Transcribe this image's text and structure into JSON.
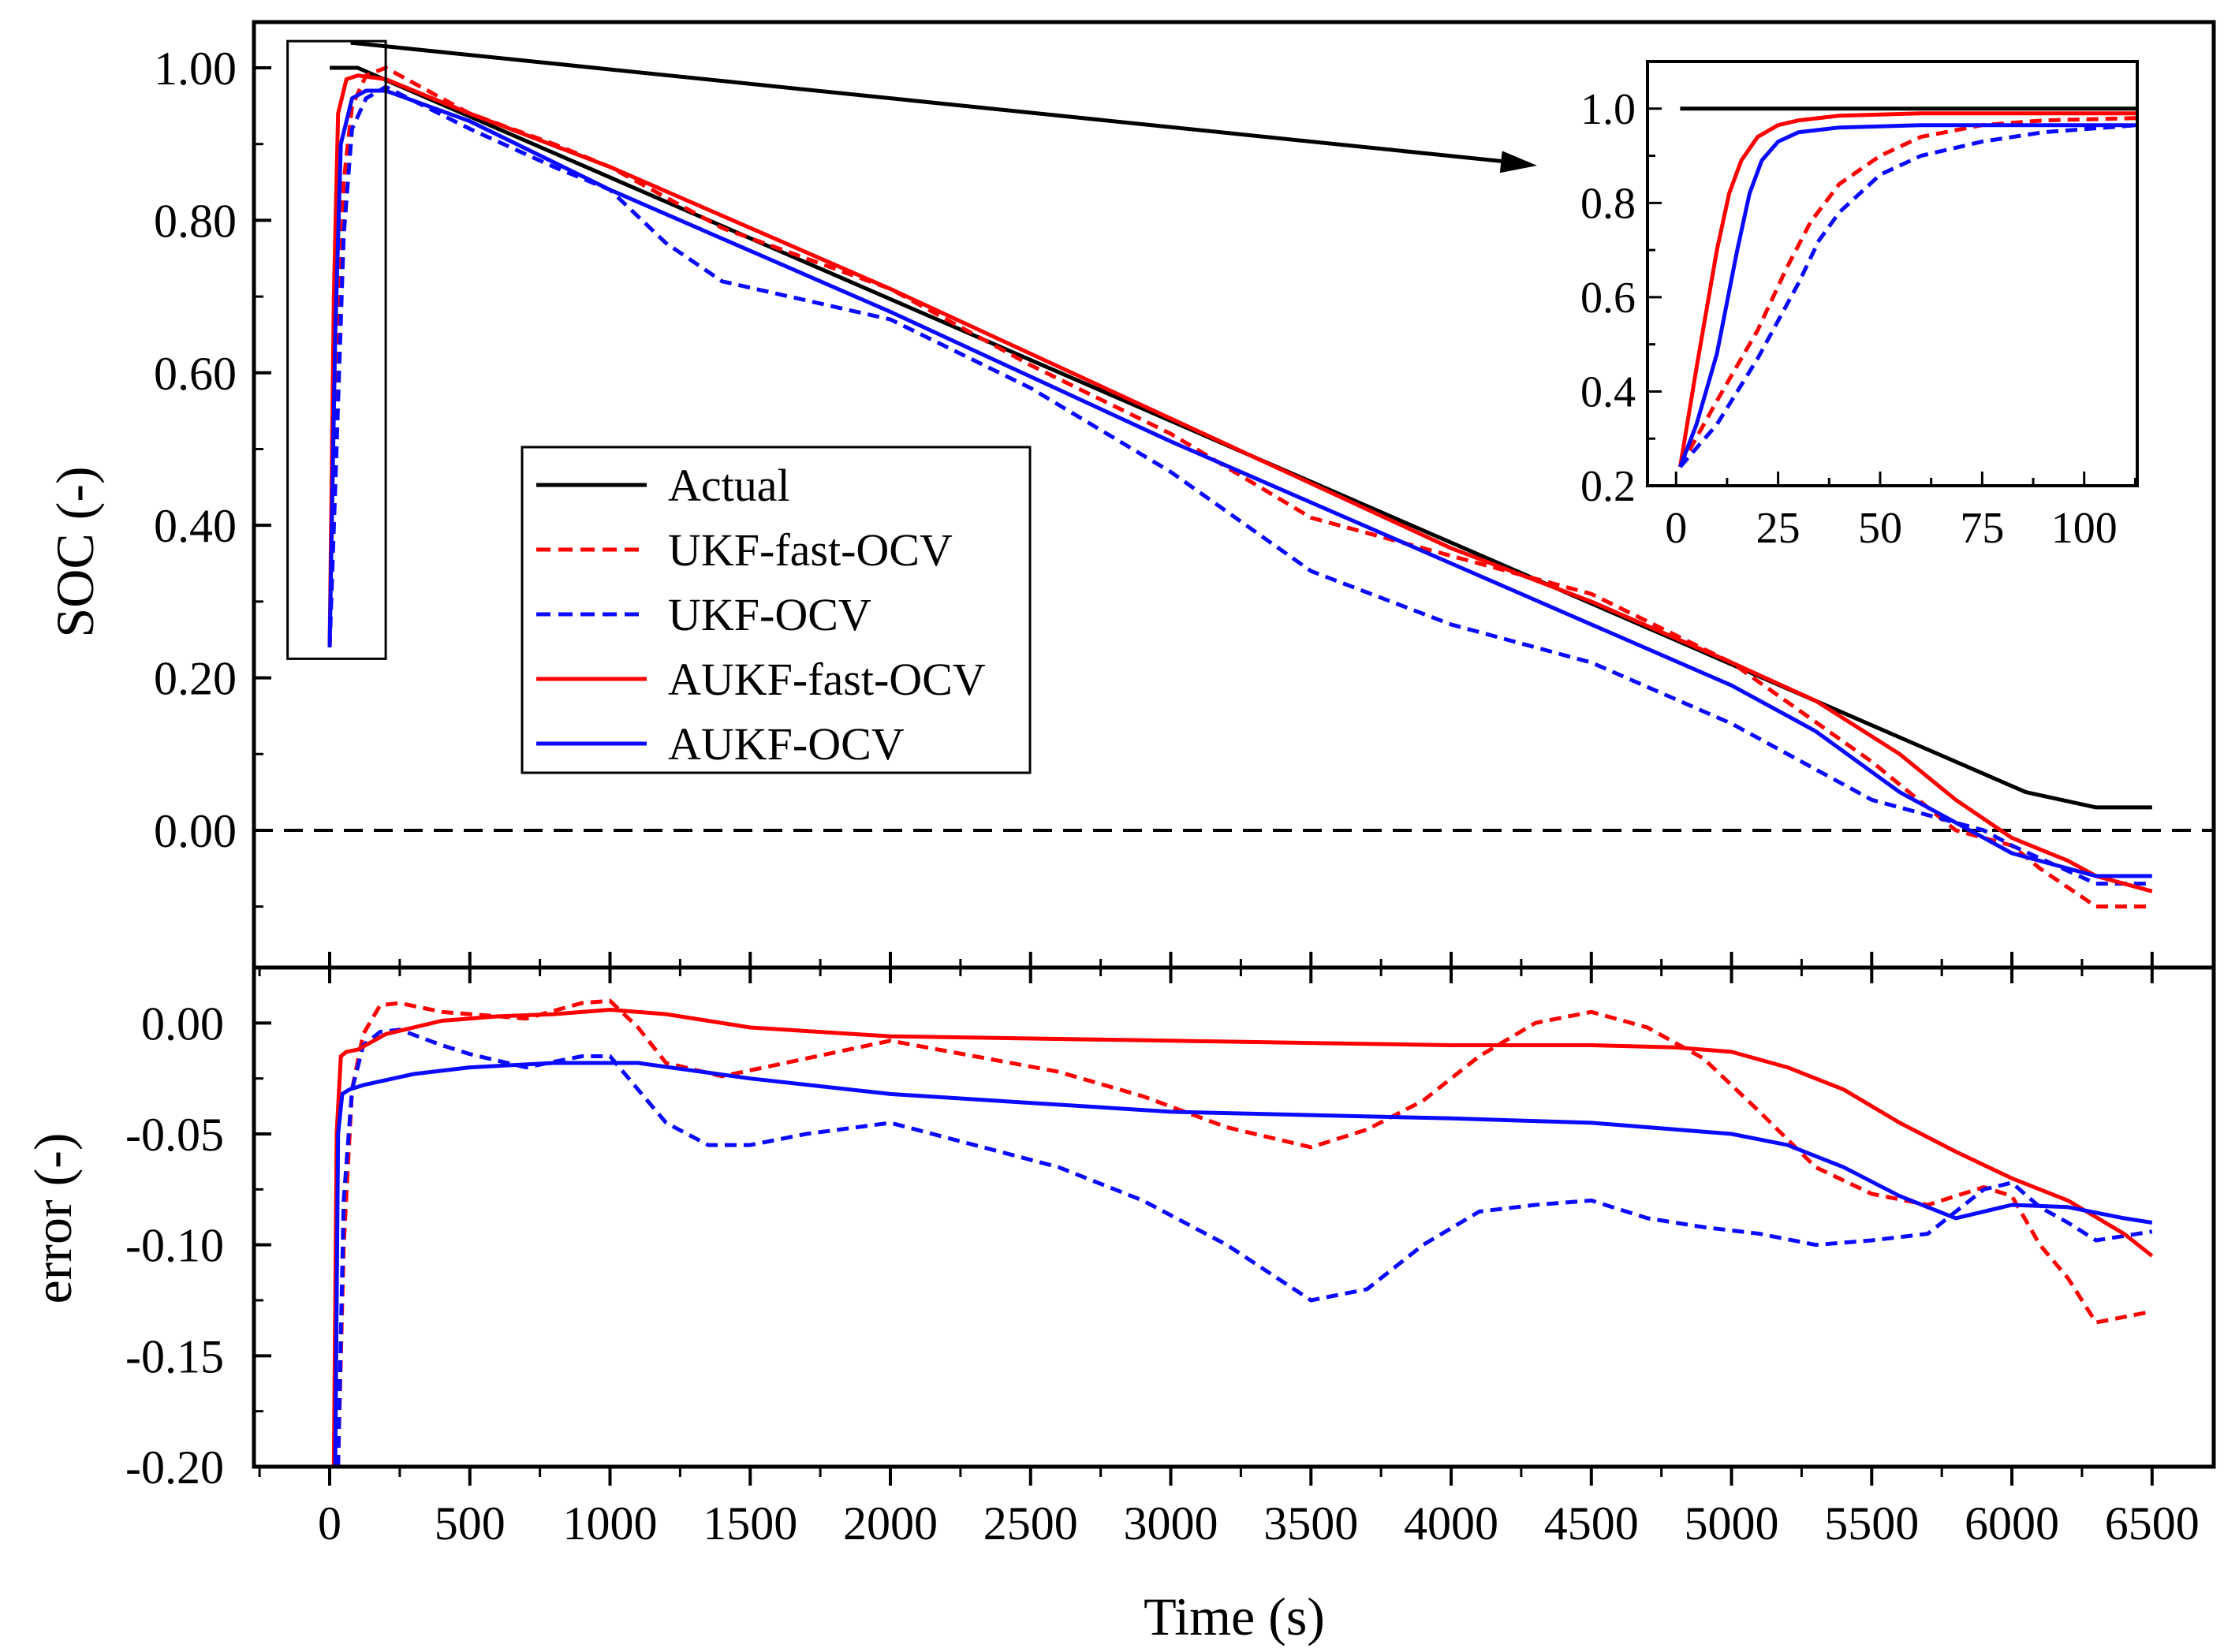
{
  "colors": {
    "actual": "#000000",
    "red": "#ff0000",
    "blue": "#0a0aff",
    "zero_line": "#000000"
  },
  "chart_data": [
    {
      "id": "soc",
      "type": "line",
      "title": "",
      "xlabel": "",
      "ylabel": "SOC (-)",
      "xlim": [
        -270,
        6720
      ],
      "ylim": [
        -0.18,
        1.06
      ],
      "yticks": [
        0.0,
        0.2,
        0.4,
        0.6,
        0.8,
        1.0
      ],
      "ytick_labels": [
        "0.00",
        "0.20",
        "0.40",
        "0.60",
        "0.80",
        "1.00"
      ],
      "reference_line": {
        "y": 0.0,
        "style": "dashed"
      },
      "zoom_box": {
        "x": [
          -150,
          200
        ],
        "y": [
          0.225,
          1.035
        ]
      },
      "legend": {
        "placement": "center-left",
        "entries": [
          "Actual",
          "UKF-fast-OCV",
          "UKF-OCV",
          "AUKF-fast-OCV",
          "AUKF-OCV"
        ]
      },
      "series": [
        {
          "name": "Actual",
          "style": "solid",
          "color_key": "actual",
          "x": [
            0,
            100,
            6050,
            6300,
            6500
          ],
          "y": [
            1.0,
            1.0,
            0.05,
            0.03,
            0.03
          ]
        },
        {
          "name": "UKF-fast-OCV",
          "style": "dashed",
          "color_key": "red",
          "x": [
            0,
            20,
            50,
            80,
            130,
            200,
            500,
            800,
            1000,
            1400,
            2000,
            2500,
            3000,
            3500,
            4000,
            4500,
            5000,
            5500,
            5800,
            6000,
            6100,
            6300,
            6500
          ],
          "y": [
            0.24,
            0.5,
            0.85,
            0.95,
            0.99,
            1.0,
            0.94,
            0.9,
            0.87,
            0.79,
            0.71,
            0.61,
            0.52,
            0.41,
            0.36,
            0.31,
            0.22,
            0.09,
            0.0,
            -0.02,
            -0.05,
            -0.1,
            -0.1
          ]
        },
        {
          "name": "UKF-OCV",
          "style": "dashed",
          "color_key": "blue",
          "x": [
            0,
            20,
            50,
            80,
            130,
            200,
            500,
            800,
            1000,
            1200,
            1400,
            2000,
            2500,
            3000,
            3500,
            4000,
            4500,
            5000,
            5500,
            5900,
            6000,
            6300,
            6500
          ],
          "y": [
            0.24,
            0.45,
            0.78,
            0.92,
            0.96,
            0.975,
            0.92,
            0.87,
            0.84,
            0.77,
            0.72,
            0.67,
            0.58,
            0.47,
            0.34,
            0.27,
            0.22,
            0.14,
            0.04,
            0.0,
            -0.02,
            -0.07,
            -0.07
          ]
        },
        {
          "name": "AUKF-fast-OCV",
          "style": "solid",
          "color_key": "red",
          "x": [
            0,
            15,
            30,
            60,
            100,
            200,
            500,
            1000,
            2000,
            3000,
            4000,
            4500,
            5000,
            5300,
            5600,
            5800,
            6000,
            6200,
            6300,
            6500
          ],
          "y": [
            0.24,
            0.7,
            0.94,
            0.985,
            0.99,
            0.985,
            0.94,
            0.87,
            0.71,
            0.54,
            0.37,
            0.3,
            0.22,
            0.17,
            0.1,
            0.04,
            -0.01,
            -0.04,
            -0.06,
            -0.08
          ]
        },
        {
          "name": "AUKF-OCV",
          "style": "solid",
          "color_key": "blue",
          "x": [
            0,
            20,
            40,
            80,
            130,
            200,
            500,
            1000,
            2000,
            3000,
            3500,
            4000,
            4500,
            5000,
            5300,
            5600,
            5900,
            6000,
            6300,
            6500
          ],
          "y": [
            0.24,
            0.65,
            0.9,
            0.96,
            0.97,
            0.97,
            0.93,
            0.84,
            0.68,
            0.51,
            0.43,
            0.35,
            0.27,
            0.19,
            0.13,
            0.05,
            -0.01,
            -0.03,
            -0.06,
            -0.06
          ]
        }
      ]
    },
    {
      "id": "error",
      "type": "line",
      "title": "",
      "xlabel": "Time (s)",
      "ylabel": "error (-)",
      "xlim": [
        -270,
        6720
      ],
      "ylim": [
        -0.2,
        0.025
      ],
      "xticks": [
        0,
        500,
        1000,
        1500,
        2000,
        2500,
        3000,
        3500,
        4000,
        4500,
        5000,
        5500,
        6000,
        6500
      ],
      "xtick_labels": [
        "0",
        "500",
        "1000",
        "1500",
        "2000",
        "2500",
        "3000",
        "3500",
        "4000",
        "4500",
        "5000",
        "5500",
        "6000",
        "6500"
      ],
      "yticks": [
        0.0,
        -0.05,
        -0.1,
        -0.15,
        -0.2
      ],
      "ytick_labels": [
        "0.00",
        "-0.05",
        "-0.10",
        "-0.15",
        "-0.20"
      ],
      "series": [
        {
          "name": "UKF-fast-OCV",
          "style": "dashed",
          "color_key": "red",
          "x": [
            30,
            50,
            80,
            120,
            180,
            250,
            400,
            500,
            700,
            900,
            1000,
            1100,
            1200,
            1400,
            1700,
            2000,
            2300,
            2600,
            2900,
            3200,
            3500,
            3700,
            3900,
            4100,
            4300,
            4500,
            4700,
            4900,
            5100,
            5300,
            5500,
            5700,
            5900,
            6000,
            6100,
            6200,
            6300,
            6500
          ],
          "y": [
            -0.2,
            -0.1,
            -0.03,
            -0.005,
            0.008,
            0.009,
            0.005,
            0.004,
            0.002,
            0.009,
            0.01,
            -0.002,
            -0.018,
            -0.024,
            -0.016,
            -0.008,
            -0.015,
            -0.022,
            -0.033,
            -0.047,
            -0.056,
            -0.048,
            -0.035,
            -0.015,
            0.0,
            0.005,
            -0.002,
            -0.016,
            -0.04,
            -0.065,
            -0.077,
            -0.082,
            -0.074,
            -0.078,
            -0.1,
            -0.115,
            -0.135,
            -0.13
          ]
        },
        {
          "name": "UKF-OCV",
          "style": "dashed",
          "color_key": "blue",
          "x": [
            30,
            50,
            80,
            120,
            180,
            250,
            400,
            500,
            700,
            900,
            1000,
            1100,
            1200,
            1350,
            1500,
            1700,
            2000,
            2300,
            2600,
            2900,
            3200,
            3500,
            3700,
            3900,
            4100,
            4300,
            4500,
            4700,
            4900,
            5100,
            5300,
            5500,
            5700,
            5900,
            6000,
            6100,
            6200,
            6300,
            6500
          ],
          "y": [
            -0.2,
            -0.08,
            -0.03,
            -0.01,
            -0.004,
            -0.003,
            -0.01,
            -0.014,
            -0.02,
            -0.015,
            -0.015,
            -0.03,
            -0.045,
            -0.055,
            -0.055,
            -0.05,
            -0.045,
            -0.055,
            -0.065,
            -0.08,
            -0.1,
            -0.125,
            -0.12,
            -0.1,
            -0.085,
            -0.082,
            -0.08,
            -0.088,
            -0.092,
            -0.095,
            -0.1,
            -0.098,
            -0.095,
            -0.075,
            -0.072,
            -0.083,
            -0.09,
            -0.098,
            -0.094
          ]
        },
        {
          "name": "AUKF-fast-OCV",
          "style": "solid",
          "color_key": "red",
          "x": [
            15,
            25,
            40,
            60,
            100,
            200,
            400,
            600,
            800,
            1000,
            1200,
            1500,
            2000,
            3000,
            4000,
            4500,
            4800,
            5000,
            5200,
            5400,
            5600,
            5800,
            6000,
            6200,
            6400,
            6500
          ],
          "y": [
            -0.2,
            -0.05,
            -0.015,
            -0.013,
            -0.012,
            -0.005,
            0.001,
            0.003,
            0.004,
            0.006,
            0.004,
            -0.002,
            -0.006,
            -0.008,
            -0.01,
            -0.01,
            -0.011,
            -0.013,
            -0.02,
            -0.03,
            -0.045,
            -0.058,
            -0.07,
            -0.08,
            -0.095,
            -0.105
          ]
        },
        {
          "name": "AUKF-OCV",
          "style": "solid",
          "color_key": "blue",
          "x": [
            20,
            30,
            45,
            70,
            120,
            300,
            500,
            800,
            1000,
            1100,
            1500,
            2000,
            3000,
            4000,
            4500,
            5000,
            5200,
            5400,
            5600,
            5800,
            6000,
            6200,
            6400,
            6500
          ],
          "y": [
            -0.2,
            -0.05,
            -0.032,
            -0.03,
            -0.028,
            -0.023,
            -0.02,
            -0.018,
            -0.018,
            -0.018,
            -0.025,
            -0.032,
            -0.04,
            -0.043,
            -0.045,
            -0.05,
            -0.055,
            -0.065,
            -0.078,
            -0.088,
            -0.082,
            -0.083,
            -0.088,
            -0.09
          ]
        }
      ]
    },
    {
      "id": "inset",
      "type": "line",
      "title": "",
      "xlabel": "",
      "ylabel": "",
      "xlim": [
        -7,
        113
      ],
      "ylim": [
        0.2,
        1.1
      ],
      "xticks": [
        0,
        25,
        50,
        75,
        100
      ],
      "xtick_labels": [
        "0",
        "25",
        "50",
        "75",
        "100"
      ],
      "yticks": [
        0.2,
        0.4,
        0.6,
        0.8,
        1.0
      ],
      "ytick_labels": [
        "0.2",
        "0.4",
        "0.6",
        "0.8",
        "1.0"
      ],
      "series": [
        {
          "name": "Actual",
          "style": "solid",
          "color_key": "actual",
          "x": [
            1,
            113
          ],
          "y": [
            1.0,
            1.0
          ]
        },
        {
          "name": "UKF-fast-OCV",
          "style": "dashed",
          "color_key": "red",
          "x": [
            1,
            10,
            20,
            27,
            33,
            40,
            50,
            60,
            75,
            90,
            113
          ],
          "y": [
            0.24,
            0.38,
            0.53,
            0.66,
            0.76,
            0.84,
            0.9,
            0.94,
            0.965,
            0.975,
            0.98
          ]
        },
        {
          "name": "UKF-OCV",
          "style": "dashed",
          "color_key": "blue",
          "x": [
            1,
            10,
            20,
            30,
            35,
            40,
            50,
            60,
            75,
            90,
            113
          ],
          "y": [
            0.24,
            0.33,
            0.47,
            0.63,
            0.72,
            0.78,
            0.86,
            0.9,
            0.93,
            0.95,
            0.965
          ]
        },
        {
          "name": "AUKF-fast-OCV",
          "style": "solid",
          "color_key": "red",
          "x": [
            1,
            5,
            10,
            13,
            16,
            20,
            25,
            30,
            40,
            60,
            113
          ],
          "y": [
            0.24,
            0.45,
            0.7,
            0.82,
            0.89,
            0.94,
            0.965,
            0.975,
            0.985,
            0.99,
            0.99
          ]
        },
        {
          "name": "AUKF-OCV",
          "style": "solid",
          "color_key": "blue",
          "x": [
            1,
            5,
            10,
            15,
            18,
            21,
            25,
            30,
            40,
            60,
            113
          ],
          "y": [
            0.24,
            0.33,
            0.48,
            0.7,
            0.82,
            0.89,
            0.93,
            0.95,
            0.96,
            0.965,
            0.965
          ]
        }
      ]
    }
  ]
}
